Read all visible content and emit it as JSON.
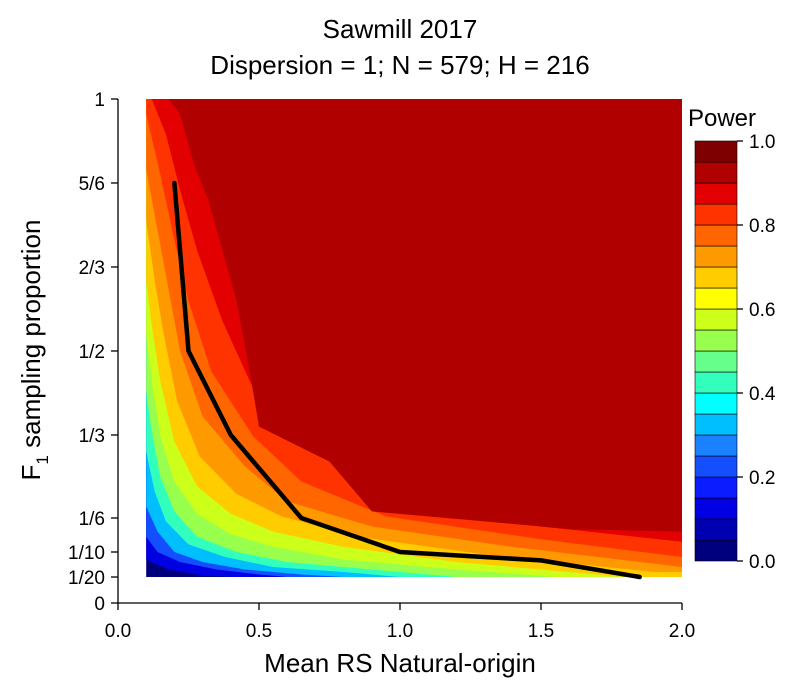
{
  "chart_data": {
    "type": "heatmap",
    "title_line1": "Sawmill 2017",
    "title_line2": "Dispersion = 1; N = 579; H = 216",
    "xlabel": "Mean RS Natural-origin",
    "ylabel_main": "F",
    "ylabel_sub": "1",
    "ylabel_rest": " sampling proportion",
    "xlim": [
      0.0,
      2.0
    ],
    "ylim": [
      0,
      1
    ],
    "x_ticks": [
      {
        "value": 0.0,
        "label": "0.0"
      },
      {
        "value": 0.5,
        "label": "0.5"
      },
      {
        "value": 1.0,
        "label": "1.0"
      },
      {
        "value": 1.5,
        "label": "1.5"
      },
      {
        "value": 2.0,
        "label": "2.0"
      }
    ],
    "y_ticks": [
      {
        "value": 0,
        "label": "0"
      },
      {
        "value": 0.05,
        "label": "1/20"
      },
      {
        "value": 0.1,
        "label": "1/10"
      },
      {
        "value": 0.1667,
        "label": "1/6"
      },
      {
        "value": 0.3333,
        "label": "1/3"
      },
      {
        "value": 0.5,
        "label": "1/2"
      },
      {
        "value": 0.6667,
        "label": "2/3"
      },
      {
        "value": 0.8333,
        "label": "5/6"
      },
      {
        "value": 1,
        "label": "1"
      }
    ],
    "legend": {
      "title": "Power",
      "placement": "right",
      "labels": [
        {
          "value": 0.0,
          "label": "0.0"
        },
        {
          "value": 0.2,
          "label": "0.2"
        },
        {
          "value": 0.4,
          "label": "0.4"
        },
        {
          "value": 0.6,
          "label": "0.6"
        },
        {
          "value": 0.8,
          "label": "0.8"
        },
        {
          "value": 1.0,
          "label": "1.0"
        }
      ],
      "colors": [
        "#00007f",
        "#0000b1",
        "#0000e3",
        "#0b1cff",
        "#134fff",
        "#1b82ff",
        "#00bfff",
        "#00ffff",
        "#33ffbd",
        "#66ff8c",
        "#99ff4d",
        "#ccff1a",
        "#ffff00",
        "#ffcc00",
        "#ff9900",
        "#ff6600",
        "#ff3300",
        "#e30000",
        "#b10000",
        "#7f0000"
      ]
    },
    "contours": [
      {
        "level": 0.1,
        "points": [
          [
            0.1,
            0.085
          ],
          [
            0.18,
            0.065
          ],
          [
            0.3,
            0.053
          ],
          [
            0.4,
            0.05
          ]
        ]
      },
      {
        "level": 0.2,
        "points": [
          [
            0.1,
            0.13
          ],
          [
            0.14,
            0.1
          ],
          [
            0.22,
            0.08
          ],
          [
            0.35,
            0.065
          ],
          [
            0.5,
            0.055
          ],
          [
            0.6,
            0.05
          ]
        ]
      },
      {
        "level": 0.3,
        "points": [
          [
            0.1,
            0.19
          ],
          [
            0.14,
            0.14
          ],
          [
            0.2,
            0.1
          ],
          [
            0.3,
            0.08
          ],
          [
            0.45,
            0.065
          ],
          [
            0.65,
            0.055
          ],
          [
            0.8,
            0.05
          ]
        ]
      },
      {
        "level": 0.4,
        "points": [
          [
            0.1,
            0.3
          ],
          [
            0.13,
            0.22
          ],
          [
            0.17,
            0.16
          ],
          [
            0.25,
            0.115
          ],
          [
            0.38,
            0.09
          ],
          [
            0.55,
            0.07
          ],
          [
            0.8,
            0.06
          ],
          [
            1.0,
            0.05
          ]
        ]
      },
      {
        "level": 0.5,
        "points": [
          [
            0.1,
            0.42
          ],
          [
            0.12,
            0.34
          ],
          [
            0.15,
            0.25
          ],
          [
            0.2,
            0.18
          ],
          [
            0.28,
            0.13
          ],
          [
            0.42,
            0.1
          ],
          [
            0.6,
            0.08
          ],
          [
            0.9,
            0.065
          ],
          [
            1.2,
            0.05
          ]
        ]
      },
      {
        "level": 0.6,
        "points": [
          [
            0.1,
            0.53
          ],
          [
            0.12,
            0.44
          ],
          [
            0.15,
            0.33
          ],
          [
            0.2,
            0.24
          ],
          [
            0.28,
            0.175
          ],
          [
            0.4,
            0.135
          ],
          [
            0.55,
            0.11
          ],
          [
            0.8,
            0.085
          ],
          [
            1.2,
            0.065
          ],
          [
            1.55,
            0.05
          ]
        ]
      },
      {
        "level": 0.7,
        "points": [
          [
            0.1,
            0.64
          ],
          [
            0.12,
            0.55
          ],
          [
            0.15,
            0.44
          ],
          [
            0.2,
            0.32
          ],
          [
            0.28,
            0.23
          ],
          [
            0.4,
            0.175
          ],
          [
            0.55,
            0.14
          ],
          [
            0.8,
            0.11
          ],
          [
            1.2,
            0.08
          ],
          [
            1.8,
            0.05
          ]
        ]
      },
      {
        "level": 0.75,
        "points": [
          [
            0.1,
            0.76
          ],
          [
            0.13,
            0.64
          ],
          [
            0.16,
            0.54
          ],
          [
            0.21,
            0.4
          ],
          [
            0.29,
            0.29
          ],
          [
            0.42,
            0.215
          ],
          [
            0.58,
            0.17
          ],
          [
            0.85,
            0.13
          ],
          [
            1.3,
            0.095
          ],
          [
            1.9,
            0.06
          ]
        ]
      },
      {
        "level": 0.8,
        "points": [
          [
            0.1,
            0.86
          ],
          [
            0.14,
            0.74
          ],
          [
            0.18,
            0.62
          ],
          [
            0.22,
            0.5
          ],
          [
            0.3,
            0.37
          ],
          [
            0.45,
            0.27
          ],
          [
            0.6,
            0.2
          ],
          [
            0.9,
            0.15
          ],
          [
            1.4,
            0.11
          ],
          [
            2.0,
            0.07
          ]
        ]
      },
      {
        "level": 0.85,
        "points": [
          [
            0.1,
            0.97
          ],
          [
            0.15,
            0.85
          ],
          [
            0.2,
            0.72
          ],
          [
            0.25,
            0.6
          ],
          [
            0.33,
            0.46
          ],
          [
            0.48,
            0.33
          ],
          [
            0.65,
            0.24
          ],
          [
            0.95,
            0.17
          ],
          [
            1.5,
            0.125
          ],
          [
            2.0,
            0.09
          ]
        ]
      },
      {
        "level": 0.9,
        "points": [
          [
            0.12,
            1.0
          ],
          [
            0.17,
            0.93
          ],
          [
            0.22,
            0.82
          ],
          [
            0.28,
            0.7
          ],
          [
            0.37,
            0.56
          ],
          [
            0.5,
            0.4
          ],
          [
            0.7,
            0.3
          ],
          [
            1.0,
            0.21
          ],
          [
            1.5,
            0.15
          ],
          [
            2.0,
            0.12
          ]
        ]
      },
      {
        "level": 0.95,
        "points": [
          [
            0.18,
            1.0
          ],
          [
            0.22,
            0.97
          ],
          [
            0.27,
            0.87
          ],
          [
            0.32,
            0.8
          ],
          [
            0.36,
            0.72
          ],
          [
            0.42,
            0.6
          ],
          [
            0.47,
            0.45
          ],
          [
            0.5,
            0.35
          ],
          [
            0.75,
            0.28
          ],
          [
            0.9,
            0.18
          ],
          [
            1.3,
            0.16
          ],
          [
            1.6,
            0.145
          ],
          [
            2.0,
            0.14
          ]
        ]
      }
    ],
    "power_80_line": {
      "x": [
        0.2,
        0.25,
        0.4,
        0.5,
        0.65,
        1.0,
        1.5,
        1.85
      ],
      "y": [
        0.8333,
        0.5,
        0.3333,
        0.2667,
        0.1667,
        0.1,
        0.0833,
        0.05
      ]
    }
  }
}
